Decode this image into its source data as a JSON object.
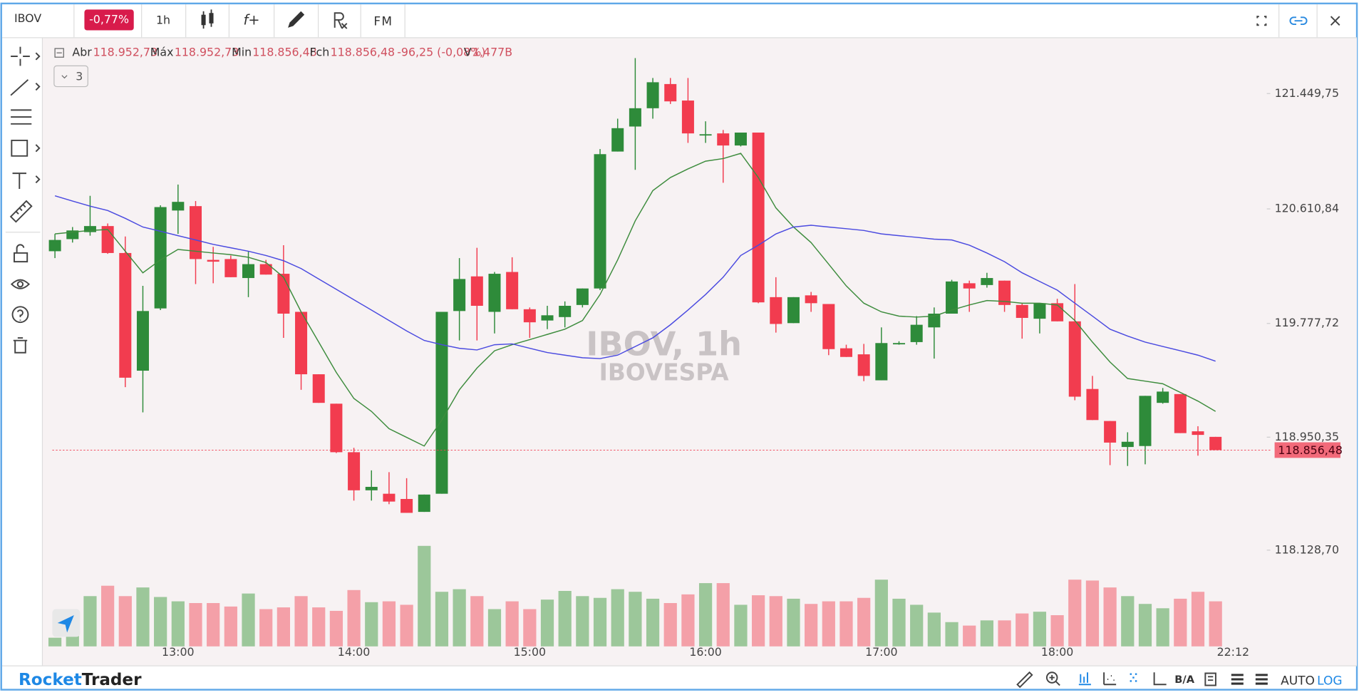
{
  "toolbar": {
    "symbol": "IBOV",
    "change": "-0,77%",
    "interval": "1h",
    "functions": "f+",
    "fundamentals": "FM"
  },
  "legend": {
    "open_label": "Abr",
    "open": "118.952,73",
    "high_label": "Máx",
    "high": "118.952,73",
    "low_label": "Min",
    "low": "118.856,48",
    "close_label": "Fch",
    "close": "118.856,48",
    "change": "-96,25 (-0,08%)",
    "volume_label": "V",
    "volume": "1,477B",
    "indicators_count": 3
  },
  "watermark": {
    "title": "IBOV, 1h",
    "subtitle": "IBOVESPA"
  },
  "footer": {
    "brand_a": "Rocket",
    "brand_b": "Trader",
    "bid_ask": "B/A",
    "auto": "AUTO",
    "log": "LOG"
  },
  "chart_data": {
    "type": "candlestick",
    "categories": [
      null,
      null,
      null,
      null,
      null,
      null,
      null,
      "13:00",
      null,
      null,
      null,
      null,
      null,
      null,
      null,
      null,
      null,
      "14:00",
      null,
      null,
      null,
      null,
      null,
      null,
      null,
      null,
      null,
      "15:00",
      null,
      null,
      null,
      null,
      null,
      null,
      null,
      null,
      null,
      "16:00",
      null,
      null,
      null,
      null,
      null,
      null,
      null,
      null,
      null,
      "17:00",
      null,
      null,
      null,
      null,
      null,
      null,
      null,
      null,
      null,
      "18:00",
      null,
      null,
      null,
      null,
      null,
      null,
      null,
      null,
      null,
      "22:12"
    ],
    "open": [
      120303,
      120391,
      120442,
      120486,
      120290,
      119434,
      119887,
      120599,
      120631,
      120240,
      120246,
      120108,
      120209,
      120139,
      119862,
      119408,
      119194,
      118841,
      118564,
      118539,
      118501,
      118407,
      118539,
      119868,
      120120,
      119862,
      120152,
      119881,
      119799,
      119824,
      119912,
      120032,
      121028,
      121210,
      121343,
      121519,
      121399,
      121147,
      121160,
      121072,
      121166,
      119969,
      119780,
      119982,
      119919,
      119597,
      119553,
      119364,
      119629,
      119642,
      119749,
      119849,
      120070,
      120057,
      120089,
      119912,
      119812,
      119925,
      119793,
      119301,
      119068,
      118879,
      118886,
      119200,
      119264,
      118993,
      118952.73,
      null
    ],
    "high": [
      120429,
      120479,
      120706,
      120505,
      120410,
      120051,
      120637,
      120788,
      120668,
      120335,
      120272,
      120303,
      120240,
      120347,
      119862,
      119408,
      119194,
      118873,
      118709,
      118696,
      118652,
      118533,
      119862,
      120253,
      120328,
      120152,
      120259,
      119894,
      119906,
      119938,
      120032,
      121046,
      121267,
      121708,
      121563,
      121563,
      121563,
      121248,
      121185,
      121166,
      121166,
      120114,
      119969,
      120007,
      119919,
      119623,
      119629,
      119749,
      119648,
      119831,
      119894,
      120095,
      120089,
      120146,
      120089,
      119925,
      119925,
      119957,
      120064,
      119396,
      119068,
      118986,
      119251,
      119308,
      119264,
      119030,
      118952.73,
      null
    ],
    "low": [
      120253,
      120366,
      120416,
      120284,
      119314,
      119131,
      119875,
      120429,
      120064,
      120070,
      120114,
      119969,
      120133,
      119673,
      119295,
      119200,
      118835,
      118489,
      118489,
      118463,
      118400,
      118407,
      118539,
      119654,
      119654,
      119705,
      119881,
      119673,
      119736,
      119749,
      119894,
      120020,
      121028,
      120895,
      121267,
      121374,
      121091,
      121091,
      120801,
      121065,
      119925,
      119711,
      119780,
      119862,
      119547,
      119534,
      119358,
      119364,
      119623,
      119623,
      119522,
      119849,
      119862,
      120038,
      119862,
      119667,
      119705,
      119793,
      119219,
      119075,
      118747,
      118741,
      118753,
      119194,
      118980,
      118816,
      118856.48,
      null
    ],
    "close": [
      120385,
      120454,
      120486,
      120290,
      119383,
      119868,
      120624,
      120662,
      120246,
      120227,
      120114,
      120209,
      120133,
      119849,
      119408,
      119200,
      118841,
      118564,
      118589,
      118482,
      118400,
      118533,
      119862,
      120101,
      119906,
      120139,
      119881,
      119786,
      119837,
      119906,
      120032,
      121009,
      121198,
      121343,
      121532,
      121393,
      121160,
      121154,
      121072,
      121166,
      119931,
      119774,
      119969,
      119925,
      119591,
      119534,
      119396,
      119635,
      119635,
      119768,
      119849,
      120083,
      120032,
      120108,
      119912,
      119818,
      119925,
      119793,
      119245,
      119075,
      118911,
      118917,
      119251,
      119282,
      118980,
      118967,
      118856.48,
      null
    ],
    "volume": [
      10,
      35,
      58,
      70,
      58,
      68,
      57,
      52,
      50,
      50,
      46,
      61,
      43,
      45,
      58,
      45,
      41,
      65,
      51,
      52,
      48,
      116,
      63,
      66,
      58,
      43,
      52,
      43,
      54,
      64,
      58,
      56,
      66,
      63,
      55,
      50,
      60,
      73,
      73,
      48,
      59,
      58,
      55,
      49,
      52,
      52,
      56,
      77,
      55,
      48,
      39,
      28,
      24,
      30,
      30,
      38,
      40,
      36,
      77,
      76,
      68,
      58,
      49,
      44,
      55,
      63,
      52,
      null
    ],
    "volume_ylim": [
      0,
      702
    ],
    "lines": [
      {
        "color": "#3d8c3d",
        "values": [
          120429,
          120442,
          120454,
          120461,
          120303,
          120146,
          120240,
          120316,
          120303,
          120290,
          120278,
          120259,
          120221,
          120114,
          119862,
          119642,
          119421,
          119232,
          119138,
          119012,
          118949,
          118886,
          119075,
          119295,
          119453,
          119579,
          119623,
          119660,
          119698,
          119736,
          119799,
          119988,
          120240,
          120524,
          120744,
          120839,
          120902,
          120958,
          120977,
          121015,
          120839,
          120618,
          120479,
          120366,
          120209,
          120051,
          119925,
          119862,
          119831,
          119824,
          119831,
          119875,
          119912,
          119944,
          119938,
          119925,
          119925,
          119912,
          119799,
          119642,
          119497,
          119377,
          119358,
          119339,
          119276,
          119213,
          119138,
          null
        ]
      },
      {
        "color": "#4a4ae0",
        "values": [
          120706,
          120668,
          120631,
          120599,
          120542,
          120479,
          120448,
          120416,
          120385,
          120353,
          120328,
          120303,
          120272,
          120234,
          120177,
          120101,
          120026,
          119950,
          119875,
          119799,
          119723,
          119654,
          119623,
          119597,
          119585,
          119623,
          119629,
          119597,
          119566,
          119547,
          119528,
          119522,
          119547,
          119610,
          119673,
          119768,
          119875,
          119988,
          120114,
          120272,
          120347,
          120429,
          120479,
          120492,
          120479,
          120467,
          120454,
          120429,
          120416,
          120404,
          120391,
          120385,
          120347,
          120290,
          120227,
          120146,
          120083,
          120020,
          119925,
          119831,
          119736,
          119686,
          119642,
          119610,
          119579,
          119547,
          119503,
          null
        ]
      }
    ],
    "up_color": "#2e8b3a",
    "down_color": "#f23c4f",
    "volume_up_color": "#9cc79a",
    "volume_down_color": "#f4a0a8",
    "ylim": [
      117309,
      121853
    ],
    "yticks": [
      {
        "value": 121449.75,
        "label": "121.449,75"
      },
      {
        "value": 120610.84,
        "label": "120.610,84"
      },
      {
        "value": 119777.72,
        "label": "119.777,72"
      },
      {
        "value": 118950.35,
        "label": "118.950,35"
      },
      {
        "value": 118128.7,
        "label": "118.128,70"
      }
    ],
    "last_price": {
      "value": 118856.48,
      "label": "118.856,48"
    },
    "grid": false
  }
}
